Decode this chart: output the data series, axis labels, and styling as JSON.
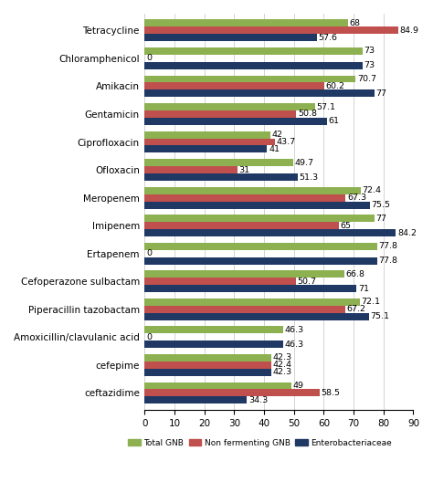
{
  "categories": [
    "Tetracycline",
    "Chloramphenicol",
    "Amikacin",
    "Gentamicin",
    "Ciprofloxacin",
    "Ofloxacin",
    "Meropenem",
    "Imipenem",
    "Ertapenem",
    "Cefoperazone sulbactam",
    "Piperacillin tazobactam",
    "Amoxicillin/clavulanic acid",
    "cefepime",
    "ceftazidime"
  ],
  "total_gnb": [
    68,
    73,
    70.7,
    57.1,
    42,
    49.7,
    72.4,
    77,
    77.8,
    66.8,
    72.1,
    46.3,
    42.3,
    49
  ],
  "non_ferm_gnb": [
    84.9,
    0,
    60.2,
    50.8,
    43.7,
    31,
    67.3,
    65,
    0,
    50.7,
    67.2,
    0,
    42.4,
    58.5
  ],
  "enterobacteriaceae": [
    57.6,
    73,
    77,
    61,
    41,
    51.3,
    75.5,
    84.2,
    77.8,
    71,
    75.1,
    46.3,
    42.3,
    34.3
  ],
  "colors": {
    "total_gnb": "#8db050",
    "non_ferm_gnb": "#c0504d",
    "enterobacteriaceae": "#1f3864"
  },
  "xlim": [
    0,
    90
  ],
  "xticks": [
    0,
    10,
    20,
    30,
    40,
    50,
    60,
    70,
    80,
    90
  ],
  "legend_labels": [
    "Total GNB",
    "Non fermenting GNB",
    "Enterobacteriaceae"
  ],
  "bar_height": 0.26,
  "fontsize_ticks": 7.5,
  "fontsize_labels": 6.8,
  "background_color": "#ffffff"
}
